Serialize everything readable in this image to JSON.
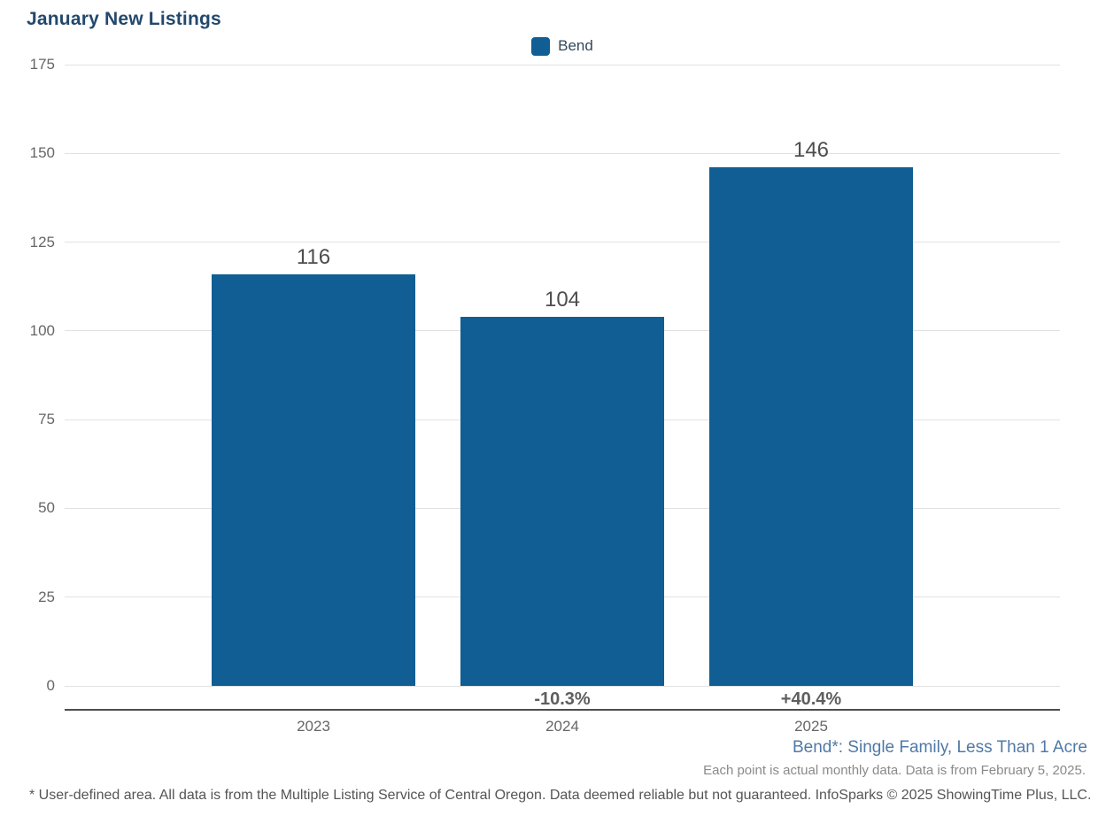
{
  "chart_data": {
    "type": "bar",
    "title": "January New Listings",
    "categories": [
      "2023",
      "2024",
      "2025"
    ],
    "series": [
      {
        "name": "Bend",
        "values": [
          116,
          104,
          146
        ]
      }
    ],
    "value_labels": [
      "116",
      "104",
      "146"
    ],
    "change_labels": [
      "",
      "-10.3%",
      "+40.4%"
    ],
    "yticks": [
      0,
      25,
      50,
      75,
      100,
      125,
      150,
      175
    ],
    "ylim": [
      0,
      175
    ],
    "xlabel": "",
    "ylabel": "",
    "grid": "horizontal",
    "legend_position": "top-center",
    "bar_color": "#105e94"
  },
  "footnotes": {
    "series_definition": "Bend*: Single Family, Less Than 1 Acre",
    "data_note": "Each point is actual monthly data. Data is from February 5, 2025.",
    "disclaimer": "* User-defined area. All data is from the Multiple Listing Service of Central Oregon. Data deemed reliable but not guaranteed. InfoSparks © 2025 ShowingTime Plus, LLC."
  },
  "colors": {
    "bar": "#105e94",
    "title": "#23486b",
    "gridline": "#e2e2e2",
    "axis_line": "#4d4d4d",
    "tick_text": "#666666",
    "value_text": "#4d4d4d",
    "definition_text": "#5079a6"
  }
}
